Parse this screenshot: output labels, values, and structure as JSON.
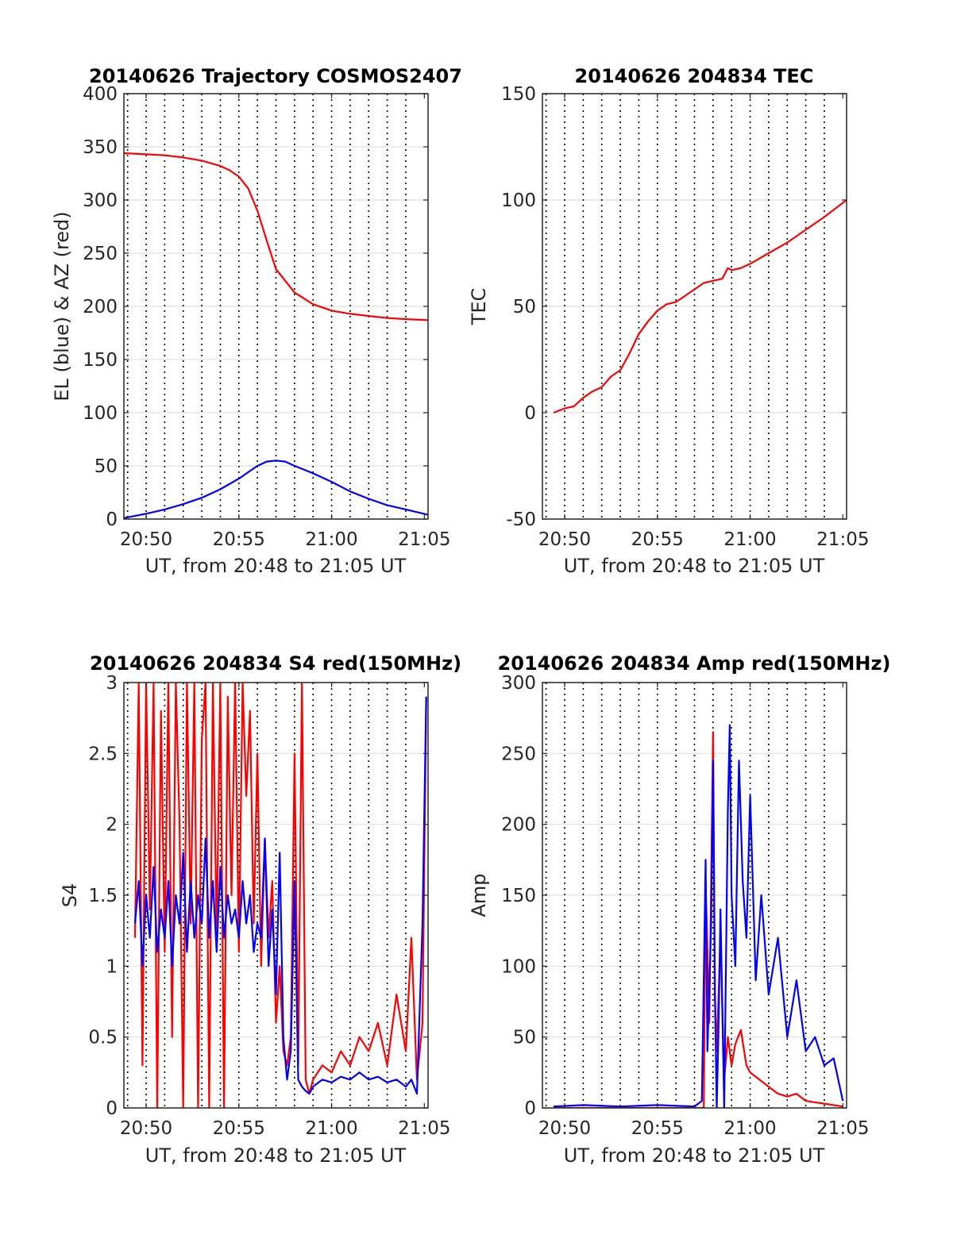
{
  "chart_data": [
    {
      "type": "line",
      "title": "20140626 Trajectory COSMOS2407",
      "xlabel": "UT, from 20:48 to 21:05 UT",
      "ylabel": "EL (blue) & AZ (red)",
      "xlim": [
        20.8,
        37.2
      ],
      "ylim": [
        0,
        400
      ],
      "x_ticks": [
        22,
        27,
        32,
        37
      ],
      "x_tick_labels": [
        "20:50",
        "20:55",
        "21:00",
        "21:05"
      ],
      "y_ticks": [
        0,
        50,
        100,
        150,
        200,
        250,
        300,
        350,
        400
      ],
      "y_tick_labels": [
        "0",
        "50",
        "100",
        "150",
        "200",
        "250",
        "300",
        "350",
        "400"
      ],
      "minute_gridlines": [
        21,
        22,
        23,
        24,
        25,
        26,
        27,
        28,
        29,
        30,
        31,
        32,
        33,
        34,
        35,
        36
      ],
      "grid": true,
      "series": [
        {
          "color": "#ff0000",
          "x": [
            20.8,
            22,
            23,
            24,
            25,
            26,
            26.5,
            27,
            27.5,
            28,
            28.5,
            29,
            30,
            31,
            32,
            33,
            34,
            35,
            36,
            37.2
          ],
          "values": [
            344,
            343,
            342,
            340,
            337,
            332,
            328,
            322,
            311,
            290,
            262,
            235,
            213,
            202,
            196,
            193,
            191,
            189,
            188,
            187
          ]
        },
        {
          "color": "#0000ff",
          "x": [
            20.8,
            22,
            23,
            24,
            25,
            26,
            27,
            27.5,
            28,
            28.5,
            29,
            29.5,
            30,
            31,
            32,
            33,
            34,
            35,
            36,
            37.2
          ],
          "values": [
            1,
            5,
            9,
            14,
            20,
            28,
            38,
            44,
            50,
            54,
            55,
            54,
            50,
            43,
            35,
            26,
            19,
            13,
            9,
            4
          ]
        }
      ]
    },
    {
      "type": "line",
      "title": "20140626 204834 TEC",
      "xlabel": "UT, from 20:48 to 21:05 UT",
      "ylabel": "TEC",
      "xlim": [
        20.8,
        37.2
      ],
      "ylim": [
        -50,
        150
      ],
      "x_ticks": [
        22,
        27,
        32,
        37
      ],
      "x_tick_labels": [
        "20:50",
        "20:55",
        "21:00",
        "21:05"
      ],
      "y_ticks": [
        -50,
        0,
        50,
        100,
        150
      ],
      "y_tick_labels": [
        "-50",
        "0",
        "50",
        "100",
        "150"
      ],
      "minute_gridlines": [
        21,
        22,
        23,
        24,
        25,
        26,
        27,
        28,
        29,
        30,
        31,
        32,
        33,
        34,
        35,
        36
      ],
      "grid": true,
      "series": [
        {
          "color": "#ff0000",
          "x": [
            21.4,
            22,
            22.5,
            23,
            23.5,
            24,
            24.5,
            25,
            25.5,
            26,
            26.5,
            27,
            27.5,
            28,
            28.5,
            29,
            29.5,
            30,
            30.5,
            30.8,
            31,
            31.5,
            32,
            33,
            34,
            35,
            36,
            37.2
          ],
          "values": [
            0,
            2,
            3,
            7,
            10,
            12,
            17,
            20,
            28,
            37,
            43,
            48,
            51,
            52,
            55,
            58,
            61,
            62,
            63,
            68,
            67,
            68,
            70,
            75,
            80,
            86,
            92,
            100
          ]
        }
      ]
    },
    {
      "type": "line",
      "title": "20140626 204834 S4 red(150MHz)",
      "xlabel": "UT, from 20:48 to 21:05 UT",
      "ylabel": "S4",
      "xlim": [
        20.8,
        37.2
      ],
      "ylim": [
        0,
        3
      ],
      "x_ticks": [
        22,
        27,
        32,
        37
      ],
      "x_tick_labels": [
        "20:50",
        "20:55",
        "21:00",
        "21:05"
      ],
      "y_ticks": [
        0,
        0.5,
        1,
        1.5,
        2,
        2.5,
        3
      ],
      "y_tick_labels": [
        "0",
        "0.5",
        "1",
        "1.5",
        "2",
        "2.5",
        "3"
      ],
      "minute_gridlines": [
        21,
        22,
        23,
        24,
        25,
        26,
        27,
        28,
        29,
        30,
        31,
        32,
        33,
        34,
        35,
        36
      ],
      "grid": true,
      "series": [
        {
          "color": "#ff0000",
          "x": [
            21.4,
            21.6,
            21.8,
            22.0,
            22.2,
            22.4,
            22.6,
            22.8,
            23.0,
            23.2,
            23.4,
            23.6,
            23.8,
            24.0,
            24.2,
            24.4,
            24.6,
            24.8,
            25.0,
            25.2,
            25.4,
            25.6,
            25.8,
            26.0,
            26.2,
            26.4,
            26.6,
            26.8,
            27.0,
            27.2,
            27.4,
            27.6,
            27.8,
            28.0,
            28.2,
            28.4,
            28.6,
            28.8,
            29.0,
            29.2,
            29.4,
            29.6,
            29.8,
            30.0,
            30.2,
            30.4,
            30.6,
            30.8,
            31.0,
            31.5,
            32.0,
            32.5,
            33.0,
            33.5,
            34.0,
            34.5,
            35.0,
            35.5,
            36.0,
            36.3,
            36.6,
            36.9,
            37.1
          ],
          "values": [
            1.2,
            3.0,
            0.3,
            3.0,
            1.4,
            3.0,
            0.0,
            2.8,
            1.1,
            3.0,
            0.5,
            3.0,
            2.0,
            0.0,
            3.0,
            1.3,
            3.0,
            0.0,
            2.6,
            3.0,
            0.0,
            3.0,
            1.2,
            3.0,
            0.0,
            2.9,
            1.5,
            3.0,
            1.1,
            3.0,
            2.2,
            2.8,
            1.3,
            2.5,
            1.0,
            1.9,
            1.2,
            1.6,
            0.6,
            1.0,
            0.4,
            0.3,
            0.5,
            2.5,
            0.3,
            3.0,
            0.2,
            0.1,
            0.2,
            0.3,
            0.25,
            0.4,
            0.3,
            0.5,
            0.4,
            0.6,
            0.3,
            0.8,
            0.4,
            1.2,
            0.2,
            0.6,
            2.9
          ]
        },
        {
          "color": "#0000ff",
          "x": [
            21.4,
            21.6,
            21.8,
            22.0,
            22.2,
            22.4,
            22.6,
            22.8,
            23.0,
            23.2,
            23.4,
            23.6,
            23.8,
            24.0,
            24.2,
            24.4,
            24.6,
            24.8,
            25.0,
            25.2,
            25.4,
            25.6,
            25.8,
            26.0,
            26.2,
            26.4,
            26.6,
            26.8,
            27.0,
            27.2,
            27.4,
            27.6,
            27.8,
            28.0,
            28.2,
            28.4,
            28.6,
            28.8,
            29.0,
            29.2,
            29.4,
            29.6,
            29.8,
            30.0,
            30.2,
            30.4,
            30.6,
            30.8,
            31.0,
            31.5,
            32.0,
            32.5,
            33.0,
            33.5,
            34.0,
            34.5,
            35.0,
            35.5,
            36.0,
            36.3,
            36.6,
            36.9,
            37.1
          ],
          "values": [
            1.3,
            1.6,
            1.0,
            1.5,
            1.2,
            1.7,
            1.1,
            1.4,
            1.2,
            1.6,
            1.0,
            1.5,
            1.3,
            1.8,
            1.1,
            1.6,
            1.2,
            1.5,
            1.3,
            1.9,
            1.2,
            1.6,
            1.1,
            1.7,
            1.2,
            1.5,
            1.3,
            1.4,
            1.2,
            1.6,
            1.3,
            1.5,
            1.1,
            1.3,
            1.2,
            1.9,
            1.0,
            1.4,
            0.8,
            1.8,
            0.5,
            0.2,
            0.4,
            1.6,
            0.2,
            0.15,
            0.12,
            0.1,
            0.15,
            0.2,
            0.18,
            0.22,
            0.2,
            0.25,
            0.2,
            0.22,
            0.18,
            0.2,
            0.15,
            0.2,
            0.1,
            1.3,
            2.9
          ]
        }
      ]
    },
    {
      "type": "line",
      "title": "20140626 204834 Amp red(150MHz)",
      "xlabel": "UT, from 20:48 to 21:05 UT",
      "ylabel": "Amp",
      "xlim": [
        20.8,
        37.2
      ],
      "ylim": [
        0,
        300
      ],
      "x_ticks": [
        22,
        27,
        32,
        37
      ],
      "x_tick_labels": [
        "20:50",
        "20:55",
        "21:00",
        "21:05"
      ],
      "y_ticks": [
        0,
        50,
        100,
        150,
        200,
        250,
        300
      ],
      "y_tick_labels": [
        "0",
        "50",
        "100",
        "150",
        "200",
        "250",
        "300"
      ],
      "minute_gridlines": [
        21,
        22,
        23,
        24,
        25,
        26,
        27,
        28,
        29,
        30,
        31,
        32,
        33,
        34,
        35,
        36
      ],
      "grid": true,
      "series": [
        {
          "color": "#ff0000",
          "x": [
            21.4,
            25.0,
            29.0,
            29.5,
            29.6,
            29.8,
            30.0,
            30.1,
            30.2,
            30.4,
            30.6,
            30.8,
            31.0,
            31.2,
            31.5,
            31.8,
            32.0,
            32.5,
            33.0,
            33.5,
            34.0,
            34.5,
            35.0,
            35.5,
            36.0,
            36.5,
            37.0
          ],
          "values": [
            0,
            0,
            0,
            0,
            160,
            60,
            265,
            80,
            40,
            120,
            20,
            50,
            30,
            45,
            55,
            30,
            25,
            20,
            15,
            10,
            8,
            10,
            5,
            4,
            3,
            2,
            1
          ]
        },
        {
          "color": "#0000ff",
          "x": [
            21.4,
            23.0,
            25.0,
            27.0,
            29.0,
            29.4,
            29.6,
            29.7,
            29.9,
            30.0,
            30.1,
            30.2,
            30.3,
            30.4,
            30.6,
            30.8,
            30.9,
            31.0,
            31.2,
            31.4,
            31.6,
            31.8,
            32.0,
            32.3,
            32.6,
            33.0,
            33.5,
            34.0,
            34.5,
            35.0,
            35.5,
            36.0,
            36.5,
            37.0
          ],
          "values": [
            1,
            2,
            1,
            2,
            1,
            5,
            175,
            40,
            130,
            245,
            80,
            0,
            60,
            140,
            0,
            210,
            270,
            150,
            100,
            245,
            160,
            120,
            220,
            90,
            150,
            80,
            120,
            50,
            90,
            40,
            50,
            30,
            35,
            5
          ]
        }
      ]
    }
  ]
}
